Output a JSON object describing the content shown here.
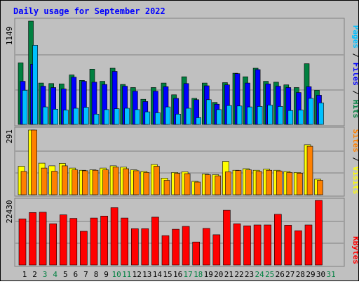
{
  "title": "Daily usage for September 2022",
  "colors": {
    "background": "#c0c0c0",
    "title": "#0000ff",
    "hits": "#008040",
    "files": "#0000ff",
    "pages": "#00c0ff",
    "visits": "#ffff00",
    "sites": "#ff8000",
    "kbytes": "#ff0000",
    "weekend_label": "#008040",
    "weekday_label": "#000000"
  },
  "chart_data": [
    {
      "type": "bar",
      "panel": "hits-files-pages",
      "ymax_label": "1149",
      "ylim": [
        0,
        1149
      ],
      "grid": true,
      "legend": "right-vertical",
      "legend_labels": {
        "pages": "Pages",
        "files": "Files",
        "hits": "Hits",
        "sep1": " / ",
        "sep2": " / "
      },
      "categories": [
        "1",
        "2",
        "3",
        "4",
        "5",
        "6",
        "7",
        "8",
        "9",
        "10",
        "11",
        "12",
        "13",
        "14",
        "15",
        "16",
        "17",
        "18",
        "19",
        "20",
        "21",
        "22",
        "23",
        "24",
        "25",
        "26",
        "27",
        "28",
        "29",
        "30"
      ],
      "series": [
        {
          "name": "Hits",
          "values": [
            685,
            1149,
            460,
            455,
            450,
            550,
            490,
            615,
            480,
            625,
            445,
            410,
            280,
            410,
            460,
            330,
            530,
            290,
            460,
            245,
            465,
            570,
            530,
            625,
            480,
            470,
            440,
            410,
            675,
            380
          ]
        },
        {
          "name": "Files",
          "values": [
            480,
            670,
            425,
            410,
            395,
            525,
            480,
            470,
            445,
            590,
            425,
            370,
            255,
            370,
            420,
            290,
            455,
            275,
            430,
            225,
            440,
            565,
            460,
            610,
            450,
            425,
            410,
            355,
            420,
            325
          ]
        },
        {
          "name": "Pages",
          "values": [
            380,
            880,
            195,
            170,
            160,
            180,
            190,
            115,
            165,
            175,
            180,
            165,
            140,
            130,
            195,
            115,
            180,
            75,
            275,
            165,
            210,
            205,
            195,
            200,
            215,
            200,
            155,
            160,
            290,
            240
          ]
        }
      ]
    },
    {
      "type": "bar",
      "panel": "visits-sites",
      "ymax_label": "291",
      "ylim": [
        0,
        291
      ],
      "grid": true,
      "legend": "right-vertical",
      "legend_labels": {
        "sites": "Sites",
        "visits": "Visits",
        "sep": " / "
      },
      "categories": [
        "1",
        "2",
        "3",
        "4",
        "5",
        "6",
        "7",
        "8",
        "9",
        "10",
        "11",
        "12",
        "13",
        "14",
        "15",
        "16",
        "17",
        "18",
        "19",
        "20",
        "21",
        "22",
        "23",
        "24",
        "25",
        "26",
        "27",
        "28",
        "29",
        "30"
      ],
      "series": [
        {
          "name": "Visits",
          "values": [
            128,
            291,
            142,
            130,
            141,
            120,
            110,
            112,
            120,
            130,
            124,
            112,
            105,
            136,
            75,
            100,
            103,
            60,
            93,
            90,
            150,
            110,
            117,
            110,
            115,
            110,
            105,
            100,
            225,
            70
          ]
        },
        {
          "name": "Sites",
          "values": [
            105,
            291,
            120,
            106,
            130,
            112,
            108,
            110,
            112,
            124,
            117,
            108,
            100,
            128,
            65,
            96,
            95,
            57,
            90,
            85,
            103,
            109,
            112,
            105,
            110,
            107,
            100,
            97,
            218,
            65
          ]
        }
      ]
    },
    {
      "type": "bar",
      "panel": "kbytes",
      "ymax_label": "22430",
      "ylim": [
        0,
        22430
      ],
      "grid": true,
      "legend": "right-vertical",
      "legend_labels": {
        "kbytes": "KBytes"
      },
      "categories": [
        "1",
        "2",
        "3",
        "4",
        "5",
        "6",
        "7",
        "8",
        "9",
        "10",
        "11",
        "12",
        "13",
        "14",
        "15",
        "16",
        "17",
        "18",
        "19",
        "20",
        "21",
        "22",
        "23",
        "24",
        "25",
        "26",
        "27",
        "28",
        "29",
        "30"
      ],
      "series": [
        {
          "name": "KBytes",
          "values": [
            16000,
            18200,
            18300,
            14300,
            17400,
            16200,
            11700,
            16300,
            17000,
            19900,
            16300,
            12600,
            12600,
            16600,
            10200,
            12400,
            13400,
            8000,
            12700,
            10500,
            19000,
            14300,
            13600,
            13900,
            13900,
            17600,
            13800,
            11900,
            13900,
            22430
          ]
        }
      ]
    }
  ],
  "x_labels": [
    {
      "text": "1",
      "weekend": false
    },
    {
      "text": "2",
      "weekend": false
    },
    {
      "text": "3",
      "weekend": true
    },
    {
      "text": "4",
      "weekend": true
    },
    {
      "text": "5",
      "weekend": false
    },
    {
      "text": "6",
      "weekend": false
    },
    {
      "text": "7",
      "weekend": false
    },
    {
      "text": "8",
      "weekend": false
    },
    {
      "text": "9",
      "weekend": false
    },
    {
      "text": "10",
      "weekend": true
    },
    {
      "text": "11",
      "weekend": true
    },
    {
      "text": "12",
      "weekend": false
    },
    {
      "text": "13",
      "weekend": false
    },
    {
      "text": "14",
      "weekend": false
    },
    {
      "text": "15",
      "weekend": false
    },
    {
      "text": "16",
      "weekend": false
    },
    {
      "text": "17",
      "weekend": true
    },
    {
      "text": "18",
      "weekend": true
    },
    {
      "text": "19",
      "weekend": false
    },
    {
      "text": "20",
      "weekend": false
    },
    {
      "text": "21",
      "weekend": false
    },
    {
      "text": "22",
      "weekend": false
    },
    {
      "text": "23",
      "weekend": false
    },
    {
      "text": "24",
      "weekend": true
    },
    {
      "text": "25",
      "weekend": true
    },
    {
      "text": "26",
      "weekend": false
    },
    {
      "text": "27",
      "weekend": false
    },
    {
      "text": "28",
      "weekend": false
    },
    {
      "text": "29",
      "weekend": false
    },
    {
      "text": "30",
      "weekend": false
    },
    {
      "text": "31",
      "weekend": true
    }
  ]
}
